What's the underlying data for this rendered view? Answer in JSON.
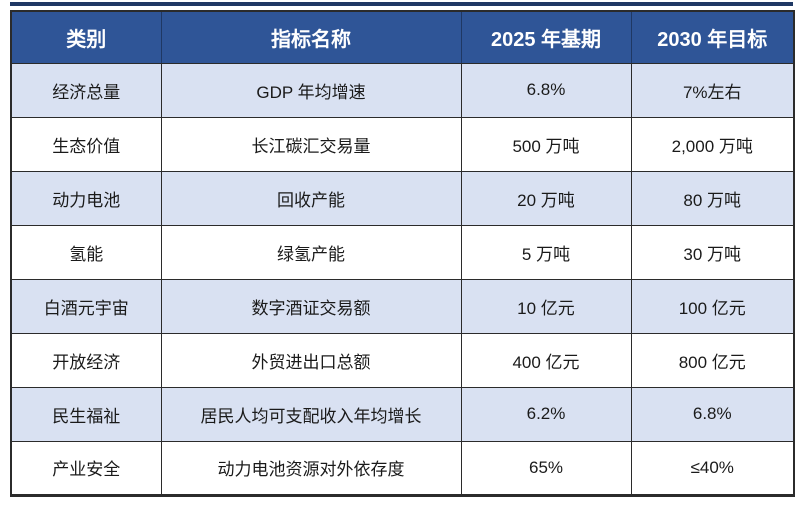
{
  "colors": {
    "header_bg": "#2F5597",
    "header_text": "#FFFFFF",
    "row_alt_bg": "#D9E1F2",
    "row_bg": "#FFFFFF",
    "border": "#2B2B2B",
    "accent_rule": "#1F3864",
    "body_text": "#1A1A1A"
  },
  "table": {
    "columns": [
      {
        "label": "类别"
      },
      {
        "label": "指标名称"
      },
      {
        "label": "2025 年基期"
      },
      {
        "label": "2030 年目标"
      }
    ],
    "rows": [
      {
        "category": "经济总量",
        "indicator": "GDP 年均增速",
        "base": "6.8%",
        "target": "7%左右"
      },
      {
        "category": "生态价值",
        "indicator": "长江碳汇交易量",
        "base": "500 万吨",
        "target": "2,000 万吨"
      },
      {
        "category": "动力电池",
        "indicator": "回收产能",
        "base": "20 万吨",
        "target": "80 万吨"
      },
      {
        "category": "氢能",
        "indicator": "绿氢产能",
        "base": "5 万吨",
        "target": "30 万吨"
      },
      {
        "category": "白酒元宇宙",
        "indicator": "数字酒证交易额",
        "base": "10 亿元",
        "target": "100 亿元"
      },
      {
        "category": "开放经济",
        "indicator": "外贸进出口总额",
        "base": "400 亿元",
        "target": "800 亿元"
      },
      {
        "category": "民生福祉",
        "indicator": "居民人均可支配收入年均增长",
        "base": "6.2%",
        "target": "6.8%"
      },
      {
        "category": "产业安全",
        "indicator": "动力电池资源对外依存度",
        "base": "65%",
        "target": "≤40%"
      }
    ]
  }
}
